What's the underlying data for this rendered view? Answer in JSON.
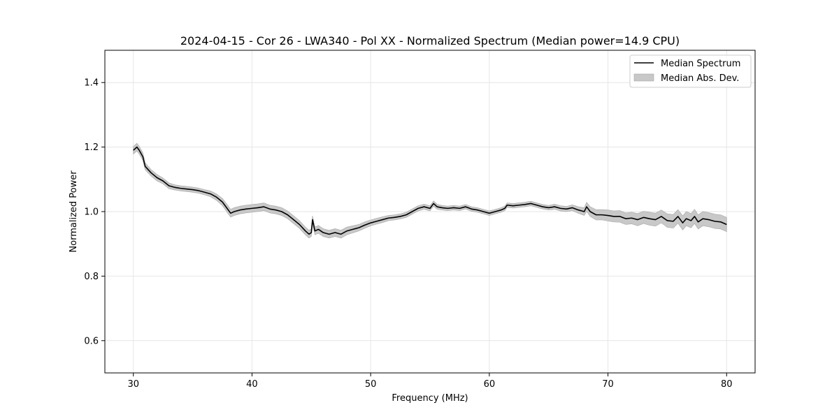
{
  "chart_data": {
    "type": "line",
    "title": "2024-04-15 - Cor 26 - LWA340 - Pol XX - Normalized Spectrum (Median power=14.9 CPU)",
    "xlabel": "Frequency (MHz)",
    "ylabel": "Normalized Power",
    "xlim": [
      27.6,
      82.4
    ],
    "ylim": [
      0.5,
      1.5
    ],
    "xticks": [
      30,
      40,
      50,
      60,
      70,
      80
    ],
    "yticks": [
      0.6,
      0.8,
      1.0,
      1.2,
      1.4
    ],
    "xtick_labels": [
      "30",
      "40",
      "50",
      "60",
      "70",
      "80"
    ],
    "ytick_labels": [
      "0.6",
      "0.8",
      "1.0",
      "1.2",
      "1.4"
    ],
    "grid": true,
    "legend_position": "top-right",
    "series": [
      {
        "name": "Median Spectrum",
        "color": "#000000",
        "x": [
          30.0,
          30.3,
          30.5,
          30.8,
          31.0,
          31.5,
          32.0,
          32.5,
          33.0,
          33.5,
          34.0,
          34.5,
          35.0,
          35.5,
          36.0,
          36.5,
          37.0,
          37.5,
          37.9,
          38.2,
          38.5,
          39.0,
          39.5,
          40.0,
          40.5,
          41.0,
          41.5,
          42.0,
          42.5,
          43.0,
          43.5,
          44.0,
          44.5,
          44.8,
          45.0,
          45.1,
          45.3,
          45.6,
          46.0,
          46.5,
          47.0,
          47.5,
          48.0,
          48.5,
          49.0,
          49.5,
          50.0,
          50.5,
          51.0,
          51.5,
          52.0,
          52.5,
          53.0,
          53.5,
          54.0,
          54.5,
          55.0,
          55.3,
          55.6,
          56.0,
          56.5,
          57.0,
          57.5,
          58.0,
          58.5,
          59.0,
          59.5,
          60.0,
          60.5,
          61.0,
          61.3,
          61.5,
          62.0,
          62.5,
          63.0,
          63.5,
          64.0,
          64.5,
          65.0,
          65.5,
          66.0,
          66.5,
          67.0,
          67.5,
          68.0,
          68.2,
          68.5,
          69.0,
          69.5,
          70.0,
          70.5,
          71.0,
          71.5,
          72.0,
          72.5,
          73.0,
          73.5,
          74.0,
          74.5,
          75.0,
          75.5,
          75.9,
          76.3,
          76.6,
          77.0,
          77.3,
          77.6,
          78.0,
          78.5,
          79.0,
          79.5,
          80.0
        ],
        "values": [
          1.19,
          1.2,
          1.19,
          1.17,
          1.14,
          1.12,
          1.105,
          1.095,
          1.08,
          1.075,
          1.072,
          1.07,
          1.068,
          1.065,
          1.06,
          1.055,
          1.045,
          1.03,
          1.01,
          0.995,
          1.0,
          1.005,
          1.008,
          1.01,
          1.012,
          1.015,
          1.008,
          1.005,
          1.0,
          0.99,
          0.975,
          0.96,
          0.94,
          0.93,
          0.935,
          0.975,
          0.94,
          0.945,
          0.935,
          0.93,
          0.935,
          0.93,
          0.94,
          0.945,
          0.95,
          0.958,
          0.965,
          0.97,
          0.975,
          0.98,
          0.982,
          0.985,
          0.99,
          1.0,
          1.01,
          1.015,
          1.01,
          1.025,
          1.015,
          1.012,
          1.01,
          1.012,
          1.01,
          1.015,
          1.008,
          1.005,
          1.0,
          0.995,
          1.0,
          1.005,
          1.01,
          1.02,
          1.018,
          1.02,
          1.022,
          1.025,
          1.02,
          1.015,
          1.012,
          1.015,
          1.01,
          1.008,
          1.012,
          1.005,
          1.0,
          1.015,
          1.0,
          0.99,
          0.99,
          0.988,
          0.985,
          0.985,
          0.978,
          0.98,
          0.975,
          0.982,
          0.978,
          0.975,
          0.985,
          0.972,
          0.97,
          0.985,
          0.965,
          0.978,
          0.972,
          0.985,
          0.968,
          0.978,
          0.975,
          0.97,
          0.968,
          0.96
        ]
      }
    ],
    "band": {
      "name": "Median Abs. Dev.",
      "color": "#c8c8c8",
      "half_width": [
        0.012,
        0.012,
        0.012,
        0.012,
        0.011,
        0.01,
        0.01,
        0.009,
        0.009,
        0.008,
        0.008,
        0.008,
        0.008,
        0.008,
        0.008,
        0.009,
        0.01,
        0.011,
        0.012,
        0.012,
        0.012,
        0.012,
        0.012,
        0.012,
        0.012,
        0.012,
        0.012,
        0.012,
        0.012,
        0.012,
        0.012,
        0.012,
        0.012,
        0.012,
        0.012,
        0.012,
        0.012,
        0.012,
        0.012,
        0.012,
        0.012,
        0.012,
        0.012,
        0.011,
        0.01,
        0.01,
        0.009,
        0.009,
        0.009,
        0.008,
        0.008,
        0.008,
        0.008,
        0.008,
        0.008,
        0.008,
        0.008,
        0.008,
        0.008,
        0.007,
        0.007,
        0.007,
        0.007,
        0.007,
        0.007,
        0.007,
        0.007,
        0.007,
        0.007,
        0.007,
        0.007,
        0.007,
        0.007,
        0.007,
        0.007,
        0.007,
        0.007,
        0.007,
        0.007,
        0.008,
        0.008,
        0.008,
        0.009,
        0.01,
        0.012,
        0.014,
        0.015,
        0.016,
        0.016,
        0.017,
        0.017,
        0.018,
        0.018,
        0.018,
        0.019,
        0.019,
        0.02,
        0.02,
        0.02,
        0.021,
        0.021,
        0.021,
        0.022,
        0.022,
        0.022,
        0.022,
        0.022,
        0.022,
        0.022,
        0.022,
        0.022,
        0.022
      ]
    },
    "legend": [
      "Median Spectrum",
      "Median Abs. Dev."
    ]
  }
}
